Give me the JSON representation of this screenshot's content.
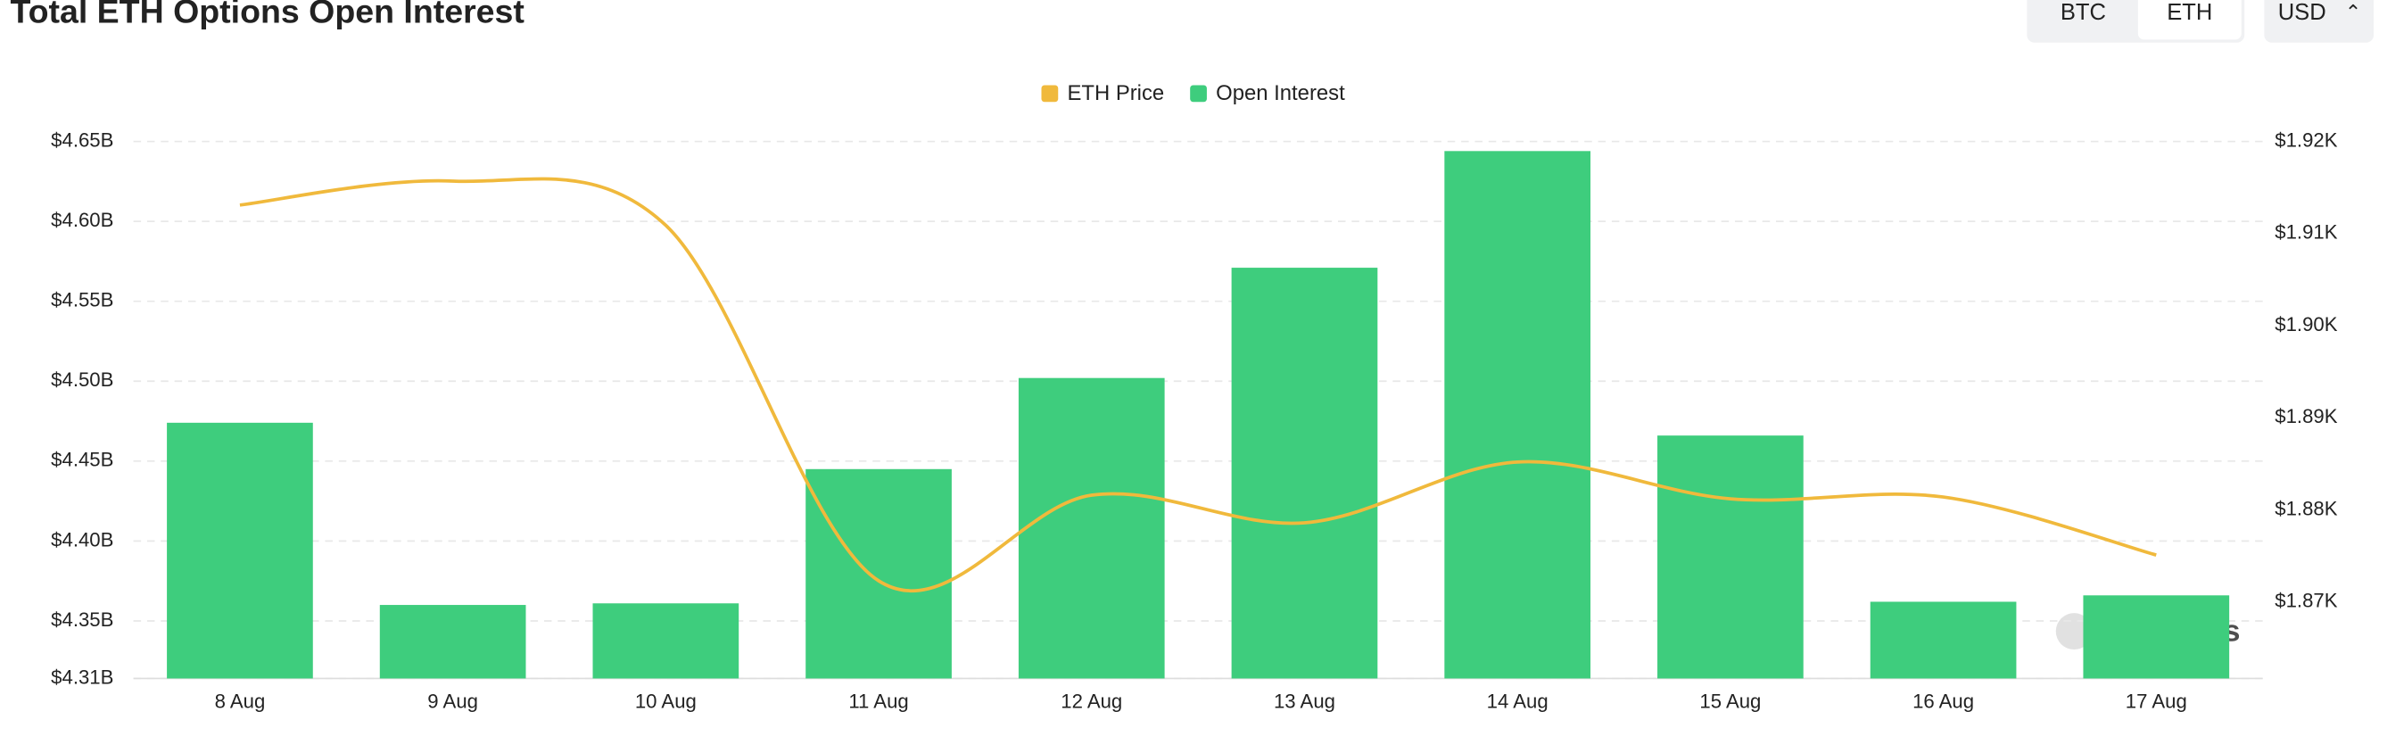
{
  "chart_data": {
    "type": "bar",
    "title": "Total ETH Options Open Interest",
    "categories": [
      "8 Aug",
      "9 Aug",
      "10 Aug",
      "11 Aug",
      "12 Aug",
      "13 Aug",
      "14 Aug",
      "15 Aug",
      "16 Aug",
      "17 Aug"
    ],
    "series": [
      {
        "name": "ETH Price",
        "type": "line",
        "axis": "y2",
        "color": "#f0b93c",
        "values": [
          1913.1,
          1915.7,
          1910.9,
          1872.3,
          1881.6,
          1878.6,
          1885.2,
          1881.2,
          1881.4,
          1875.1
        ]
      },
      {
        "name": "Open Interest",
        "type": "bar",
        "color": "#3ecd7d",
        "values": [
          4.474,
          4.36,
          4.361,
          4.445,
          4.502,
          4.571,
          4.644,
          4.466,
          4.362,
          4.366
        ]
      }
    ],
    "ylim": [
      4.314,
      4.65
    ],
    "yticks": [
      {
        "value": 4.314,
        "label": "$4.31B"
      },
      {
        "value": 4.35,
        "label": "$4.35B"
      },
      {
        "value": 4.4,
        "label": "$4.40B"
      },
      {
        "value": 4.45,
        "label": "$4.45B"
      },
      {
        "value": 4.5,
        "label": "$4.50B"
      },
      {
        "value": 4.55,
        "label": "$4.55B"
      },
      {
        "value": 4.6,
        "label": "$4.60B"
      },
      {
        "value": 4.65,
        "label": "$4.65B"
      }
    ],
    "y2lim": [
      1861.7,
      1920
    ],
    "y2ticks": [
      {
        "value": 1870,
        "label": "$1.87K"
      },
      {
        "value": 1880,
        "label": "$1.88K"
      },
      {
        "value": 1890,
        "label": "$1.89K"
      },
      {
        "value": 1900,
        "label": "$1.90K"
      },
      {
        "value": 1910,
        "label": "$1.91K"
      },
      {
        "value": 1920,
        "label": "$1.92K"
      }
    ],
    "grid": true,
    "legend": "top"
  },
  "controls": {
    "coins": [
      "BTC",
      "ETH"
    ],
    "currency": "USD"
  },
  "watermark": "coinglass"
}
